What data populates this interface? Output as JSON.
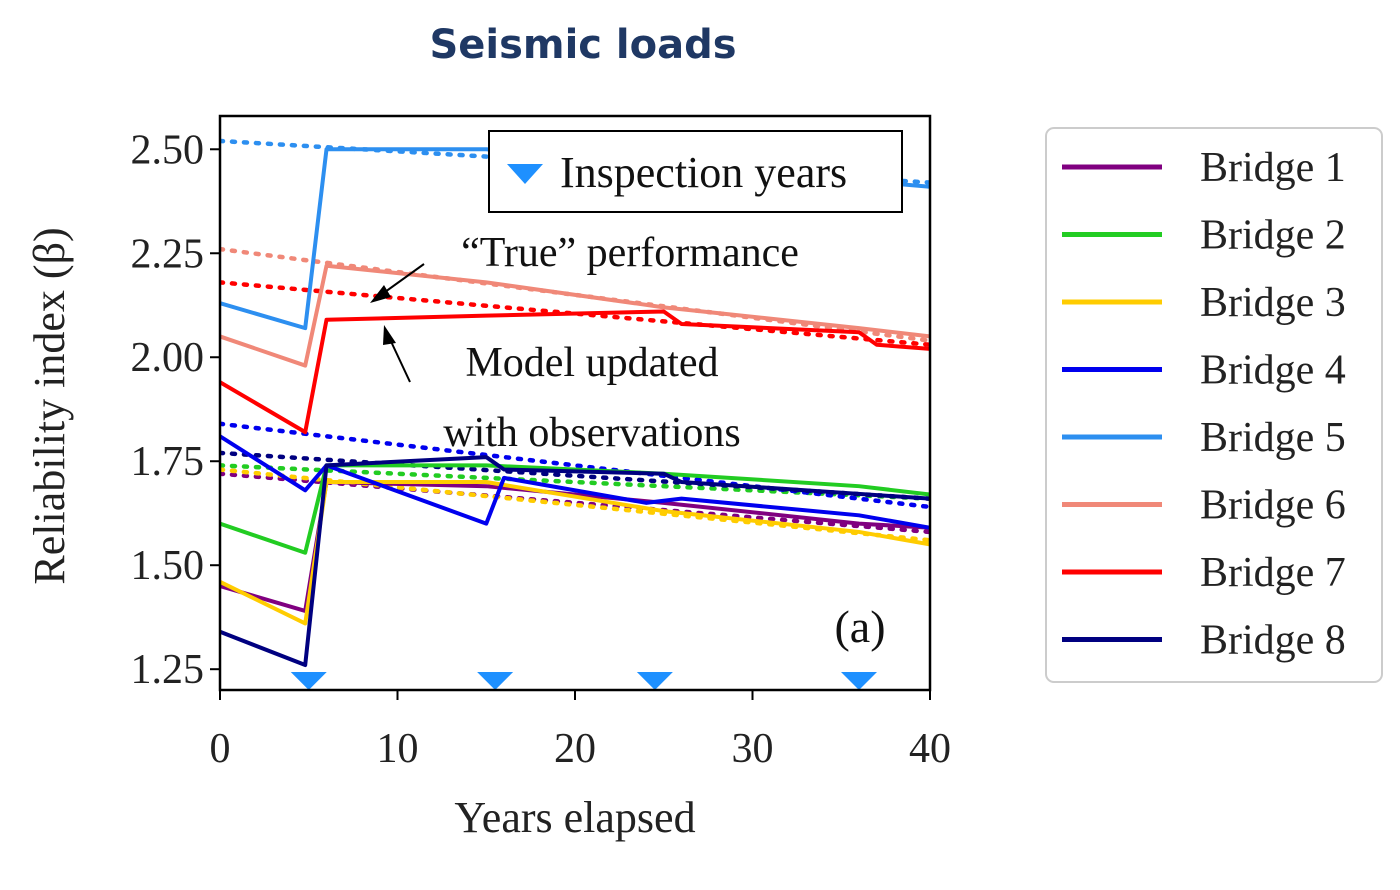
{
  "page_title": "Seismic loads",
  "inset_label": "(a)",
  "annotations": {
    "true_performance": "“True” performance",
    "model_updated_line1": "Model updated",
    "model_updated_line2": "with observations"
  },
  "chart_data": {
    "type": "line",
    "xlabel": "Years elapsed",
    "ylabel": "Reliability  index (β)",
    "xlim": [
      0,
      40
    ],
    "ylim": [
      1.2,
      2.58
    ],
    "xticks": [
      0,
      10,
      20,
      30,
      40
    ],
    "yticks": [
      1.25,
      1.5,
      1.75,
      2.0,
      2.25,
      2.5
    ],
    "ytick_labels": [
      "1.25",
      "1.50",
      "1.75",
      "2.00",
      "2.25",
      "2.50"
    ],
    "grid": false,
    "inspection_years": [
      5,
      15.5,
      24.5,
      36
    ],
    "inspection_legend": "Inspection years",
    "legend_position": "right, outside plot",
    "series": [
      {
        "name": "Bridge 1",
        "color": "#800080",
        "updated": [
          [
            0,
            1.45
          ],
          [
            4.8,
            1.39
          ],
          [
            6,
            1.7
          ],
          [
            15,
            1.69
          ],
          [
            25,
            1.65
          ],
          [
            36,
            1.6
          ],
          [
            40,
            1.59
          ]
        ],
        "true": [
          [
            0,
            1.72
          ],
          [
            40,
            1.58
          ]
        ]
      },
      {
        "name": "Bridge 2",
        "color": "#22cc22",
        "updated": [
          [
            0,
            1.6
          ],
          [
            4.8,
            1.53
          ],
          [
            6,
            1.74
          ],
          [
            15,
            1.74
          ],
          [
            25,
            1.72
          ],
          [
            36,
            1.69
          ],
          [
            40,
            1.67
          ]
        ],
        "true": [
          [
            0,
            1.74
          ],
          [
            40,
            1.66
          ]
        ]
      },
      {
        "name": "Bridge 3",
        "color": "#ffcc00",
        "updated": [
          [
            0,
            1.46
          ],
          [
            4.8,
            1.36
          ],
          [
            6,
            1.7
          ],
          [
            15,
            1.7
          ],
          [
            25,
            1.63
          ],
          [
            36,
            1.58
          ],
          [
            40,
            1.55
          ]
        ],
        "true": [
          [
            0,
            1.73
          ],
          [
            40,
            1.56
          ]
        ]
      },
      {
        "name": "Bridge 4",
        "color": "#0000ee",
        "updated": [
          [
            0,
            1.81
          ],
          [
            4.8,
            1.68
          ],
          [
            6,
            1.74
          ],
          [
            15,
            1.6
          ],
          [
            16,
            1.71
          ],
          [
            24,
            1.65
          ],
          [
            26,
            1.66
          ],
          [
            36,
            1.62
          ],
          [
            40,
            1.59
          ]
        ],
        "true": [
          [
            0,
            1.84
          ],
          [
            40,
            1.64
          ]
        ]
      },
      {
        "name": "Bridge 5",
        "color": "#2d8ff0",
        "updated": [
          [
            0,
            2.13
          ],
          [
            4.8,
            2.07
          ],
          [
            6,
            2.5
          ],
          [
            15,
            2.5
          ],
          [
            40,
            2.41
          ]
        ],
        "true": [
          [
            0,
            2.52
          ],
          [
            40,
            2.42
          ]
        ]
      },
      {
        "name": "Bridge 6",
        "color": "#f08878",
        "updated": [
          [
            0,
            2.05
          ],
          [
            4.8,
            1.98
          ],
          [
            6,
            2.22
          ],
          [
            15,
            2.18
          ],
          [
            25,
            2.12
          ],
          [
            36,
            2.07
          ],
          [
            40,
            2.05
          ]
        ],
        "true": [
          [
            0,
            2.26
          ],
          [
            40,
            2.04
          ]
        ]
      },
      {
        "name": "Bridge 7",
        "color": "#ff0000",
        "updated": [
          [
            0,
            1.94
          ],
          [
            4.8,
            1.82
          ],
          [
            6,
            2.09
          ],
          [
            15,
            2.1
          ],
          [
            25,
            2.11
          ],
          [
            26,
            2.08
          ],
          [
            36,
            2.06
          ],
          [
            37,
            2.03
          ],
          [
            40,
            2.02
          ]
        ],
        "true": [
          [
            0,
            2.18
          ],
          [
            40,
            2.03
          ]
        ]
      },
      {
        "name": "Bridge 8",
        "color": "#000080",
        "updated": [
          [
            0,
            1.34
          ],
          [
            4.8,
            1.26
          ],
          [
            6,
            1.74
          ],
          [
            15,
            1.76
          ],
          [
            16,
            1.73
          ],
          [
            25,
            1.72
          ],
          [
            26,
            1.7
          ],
          [
            40,
            1.66
          ]
        ],
        "true": [
          [
            0,
            1.77
          ],
          [
            40,
            1.66
          ]
        ]
      }
    ]
  }
}
